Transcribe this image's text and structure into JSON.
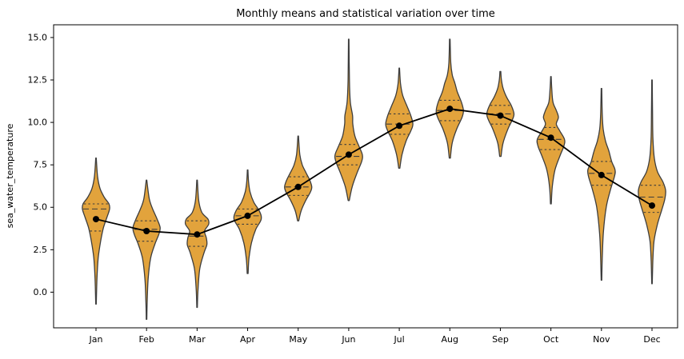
{
  "chart_data": {
    "type": "violin",
    "title": "Monthly means and statistical variation over time",
    "ylabel": "sea_water_temperature",
    "xlabel": "",
    "categories": [
      "Jan",
      "Feb",
      "Mar",
      "Apr",
      "May",
      "Jun",
      "Jul",
      "Aug",
      "Sep",
      "Oct",
      "Nov",
      "Dec"
    ],
    "yticks": [
      0.0,
      2.5,
      5.0,
      7.5,
      10.0,
      12.5,
      15.0
    ],
    "ylim": [
      -2.1,
      15.75
    ],
    "grid": false,
    "legend": "none",
    "series": [
      {
        "name": "monthly_mean",
        "values": [
          4.3,
          3.6,
          3.4,
          4.5,
          6.2,
          8.1,
          9.8,
          10.8,
          10.4,
          9.1,
          6.9,
          5.1
        ]
      }
    ],
    "months": [
      {
        "label": "Jan",
        "min": -0.7,
        "max": 7.9,
        "q1": 3.6,
        "median": 4.9,
        "q3": 5.2,
        "mean": 4.3,
        "density": [
          [
            -0.7,
            0.02
          ],
          [
            0.8,
            0.07
          ],
          [
            2.0,
            0.16
          ],
          [
            3.0,
            0.34
          ],
          [
            3.8,
            0.55
          ],
          [
            4.4,
            0.8
          ],
          [
            4.9,
            1.0
          ],
          [
            5.2,
            0.95
          ],
          [
            5.6,
            0.6
          ],
          [
            6.1,
            0.3
          ],
          [
            6.8,
            0.12
          ],
          [
            7.9,
            0.02
          ]
        ]
      },
      {
        "label": "Feb",
        "min": -1.6,
        "max": 6.6,
        "q1": 3.0,
        "median": 3.7,
        "q3": 4.2,
        "mean": 3.6,
        "density": [
          [
            -1.6,
            0.02
          ],
          [
            -0.5,
            0.05
          ],
          [
            0.8,
            0.12
          ],
          [
            2.0,
            0.3
          ],
          [
            2.8,
            0.6
          ],
          [
            3.4,
            0.9
          ],
          [
            3.8,
            1.0
          ],
          [
            4.3,
            0.78
          ],
          [
            4.9,
            0.45
          ],
          [
            5.5,
            0.2
          ],
          [
            6.6,
            0.02
          ]
        ]
      },
      {
        "label": "Mar",
        "min": -0.9,
        "max": 6.6,
        "q1": 2.7,
        "median": 3.3,
        "q3": 4.2,
        "mean": 3.4,
        "density": [
          [
            -0.9,
            0.02
          ],
          [
            0.2,
            0.07
          ],
          [
            1.4,
            0.2
          ],
          [
            2.3,
            0.5
          ],
          [
            2.8,
            0.72
          ],
          [
            3.2,
            0.68
          ],
          [
            3.6,
            0.55
          ],
          [
            4.0,
            0.85
          ],
          [
            4.3,
            0.8
          ],
          [
            4.7,
            0.35
          ],
          [
            5.4,
            0.12
          ],
          [
            6.6,
            0.02
          ]
        ]
      },
      {
        "label": "Apr",
        "min": 1.1,
        "max": 7.2,
        "q1": 4.0,
        "median": 4.5,
        "q3": 4.9,
        "mean": 4.5,
        "density": [
          [
            1.1,
            0.03
          ],
          [
            2.0,
            0.1
          ],
          [
            2.9,
            0.28
          ],
          [
            3.7,
            0.6
          ],
          [
            4.3,
            1.0
          ],
          [
            4.8,
            0.85
          ],
          [
            5.3,
            0.45
          ],
          [
            5.9,
            0.18
          ],
          [
            6.5,
            0.07
          ],
          [
            7.2,
            0.02
          ]
        ]
      },
      {
        "label": "May",
        "min": 4.2,
        "max": 9.2,
        "q1": 5.7,
        "median": 6.2,
        "q3": 6.8,
        "mean": 6.2,
        "density": [
          [
            4.2,
            0.04
          ],
          [
            4.8,
            0.22
          ],
          [
            5.4,
            0.55
          ],
          [
            5.9,
            0.9
          ],
          [
            6.2,
            1.0
          ],
          [
            6.6,
            0.85
          ],
          [
            7.0,
            0.6
          ],
          [
            7.5,
            0.3
          ],
          [
            8.1,
            0.12
          ],
          [
            9.2,
            0.02
          ]
        ]
      },
      {
        "label": "Jun",
        "min": 5.4,
        "max": 14.9,
        "q1": 7.5,
        "median": 8.0,
        "q3": 8.7,
        "mean": 8.1,
        "density": [
          [
            5.4,
            0.04
          ],
          [
            6.2,
            0.25
          ],
          [
            7.0,
            0.6
          ],
          [
            7.7,
            0.95
          ],
          [
            8.1,
            1.0
          ],
          [
            8.6,
            0.75
          ],
          [
            9.2,
            0.45
          ],
          [
            9.9,
            0.3
          ],
          [
            10.4,
            0.28
          ],
          [
            11.2,
            0.12
          ],
          [
            12.5,
            0.05
          ],
          [
            14.9,
            0.02
          ]
        ]
      },
      {
        "label": "Jul",
        "min": 7.3,
        "max": 13.2,
        "q1": 9.3,
        "median": 9.9,
        "q3": 10.5,
        "mean": 9.8,
        "density": [
          [
            7.3,
            0.04
          ],
          [
            8.1,
            0.2
          ],
          [
            8.9,
            0.5
          ],
          [
            9.5,
            0.85
          ],
          [
            9.9,
            1.0
          ],
          [
            10.4,
            0.85
          ],
          [
            11.0,
            0.55
          ],
          [
            11.6,
            0.25
          ],
          [
            12.3,
            0.09
          ],
          [
            13.2,
            0.02
          ]
        ]
      },
      {
        "label": "Aug",
        "min": 7.9,
        "max": 14.9,
        "q1": 10.1,
        "median": 10.7,
        "q3": 11.3,
        "mean": 10.8,
        "density": [
          [
            7.9,
            0.04
          ],
          [
            8.8,
            0.18
          ],
          [
            9.6,
            0.5
          ],
          [
            10.3,
            0.9
          ],
          [
            10.7,
            1.0
          ],
          [
            11.2,
            0.85
          ],
          [
            11.8,
            0.55
          ],
          [
            12.3,
            0.38
          ],
          [
            12.8,
            0.18
          ],
          [
            13.5,
            0.07
          ],
          [
            14.9,
            0.02
          ]
        ]
      },
      {
        "label": "Sep",
        "min": 8.0,
        "max": 13.0,
        "q1": 9.9,
        "median": 10.5,
        "q3": 11.0,
        "mean": 10.4,
        "density": [
          [
            8.0,
            0.05
          ],
          [
            8.8,
            0.2
          ],
          [
            9.6,
            0.55
          ],
          [
            10.1,
            0.85
          ],
          [
            10.5,
            1.0
          ],
          [
            11.0,
            0.8
          ],
          [
            11.5,
            0.45
          ],
          [
            12.0,
            0.2
          ],
          [
            12.5,
            0.08
          ],
          [
            13.0,
            0.03
          ]
        ]
      },
      {
        "label": "Oct",
        "min": 5.2,
        "max": 12.7,
        "q1": 8.4,
        "median": 9.0,
        "q3": 9.7,
        "mean": 9.1,
        "density": [
          [
            5.2,
            0.03
          ],
          [
            6.2,
            0.1
          ],
          [
            7.2,
            0.3
          ],
          [
            8.0,
            0.65
          ],
          [
            8.6,
            0.95
          ],
          [
            9.0,
            1.0
          ],
          [
            9.5,
            0.65
          ],
          [
            9.9,
            0.4
          ],
          [
            10.3,
            0.55
          ],
          [
            10.7,
            0.4
          ],
          [
            11.2,
            0.15
          ],
          [
            12.0,
            0.06
          ],
          [
            12.7,
            0.02
          ]
        ]
      },
      {
        "label": "Nov",
        "min": 0.7,
        "max": 12.0,
        "q1": 6.3,
        "median": 7.0,
        "q3": 7.7,
        "mean": 6.9,
        "density": [
          [
            0.7,
            0.02
          ],
          [
            2.0,
            0.06
          ],
          [
            3.5,
            0.14
          ],
          [
            5.0,
            0.35
          ],
          [
            6.0,
            0.65
          ],
          [
            6.8,
            0.95
          ],
          [
            7.2,
            1.0
          ],
          [
            7.7,
            0.75
          ],
          [
            8.3,
            0.55
          ],
          [
            8.9,
            0.3
          ],
          [
            9.6,
            0.13
          ],
          [
            10.5,
            0.06
          ],
          [
            12.0,
            0.02
          ]
        ]
      },
      {
        "label": "Dec",
        "min": 0.5,
        "max": 12.5,
        "q1": 4.7,
        "median": 5.6,
        "q3": 6.3,
        "mean": 5.1,
        "density": [
          [
            0.5,
            0.02
          ],
          [
            1.8,
            0.06
          ],
          [
            3.0,
            0.15
          ],
          [
            4.0,
            0.4
          ],
          [
            4.8,
            0.7
          ],
          [
            5.5,
            0.95
          ],
          [
            6.0,
            1.0
          ],
          [
            6.5,
            0.8
          ],
          [
            7.1,
            0.4
          ],
          [
            7.9,
            0.17
          ],
          [
            9.0,
            0.07
          ],
          [
            10.5,
            0.04
          ],
          [
            12.5,
            0.02
          ]
        ]
      }
    ],
    "style": {
      "violin_fill": "#e2a33c",
      "violin_edge": "#3d3d3d",
      "quartile_color": "#3d3d3d",
      "mean_color": "#000000",
      "axis_color": "#000000",
      "background": "#ffffff"
    }
  }
}
